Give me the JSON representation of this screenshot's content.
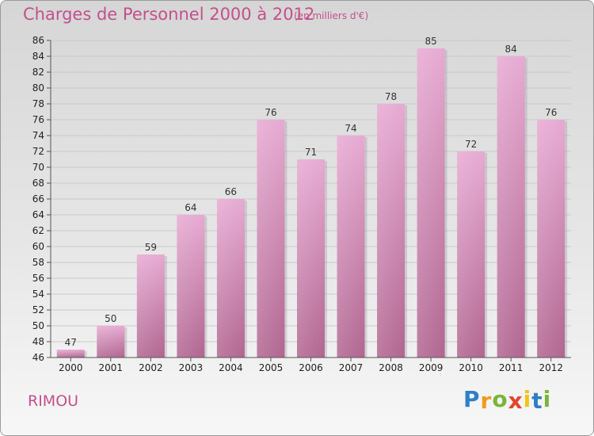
{
  "chart_data": {
    "type": "bar",
    "title": "Charges de Personnel 2000 à 2012",
    "subtitle": "(en milliers d'€)",
    "categories": [
      "2000",
      "2001",
      "2002",
      "2003",
      "2004",
      "2005",
      "2006",
      "2007",
      "2008",
      "2009",
      "2010",
      "2011",
      "2012"
    ],
    "values": [
      47,
      50,
      59,
      64,
      66,
      76,
      71,
      74,
      78,
      85,
      72,
      84,
      76
    ],
    "xlabel": "",
    "ylabel": "",
    "ylim": [
      46,
      86
    ],
    "ytick_step": 2,
    "grid": true,
    "bar_color": "#d79bc3"
  },
  "commune": "RIMOU",
  "brand": {
    "letters": [
      "P",
      "r",
      "o",
      "x",
      "i",
      "t",
      "i"
    ],
    "colors": [
      "#2f7fc7",
      "#f29a1d",
      "#7ab53a",
      "#e2442f",
      "#f0c419",
      "#2f7fc7",
      "#7ab53a"
    ]
  }
}
